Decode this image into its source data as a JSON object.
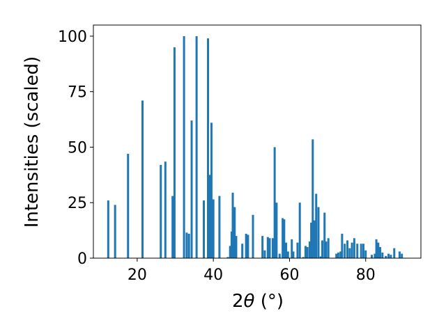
{
  "chart_data": {
    "type": "bar",
    "xlabel_prefix": "2",
    "xlabel_symbol": "θ",
    "xlabel_unit": " (°)",
    "ylabel": "Intensities (scaled)",
    "xlim": [
      8.5,
      94.5
    ],
    "ylim": [
      0,
      105
    ],
    "xticks": [
      20,
      40,
      60,
      80
    ],
    "yticks": [
      0,
      25,
      50,
      75,
      100
    ],
    "bar_width": 0.55,
    "grid": false,
    "color": "#1f77b4",
    "bars": [
      {
        "x": 12.4,
        "y": 26
      },
      {
        "x": 14.2,
        "y": 24
      },
      {
        "x": 17.6,
        "y": 47
      },
      {
        "x": 21.4,
        "y": 71
      },
      {
        "x": 26.2,
        "y": 42
      },
      {
        "x": 27.4,
        "y": 43.5
      },
      {
        "x": 29.3,
        "y": 28
      },
      {
        "x": 29.8,
        "y": 95
      },
      {
        "x": 32.3,
        "y": 100
      },
      {
        "x": 33.0,
        "y": 11.5
      },
      {
        "x": 33.6,
        "y": 11
      },
      {
        "x": 34.3,
        "y": 62
      },
      {
        "x": 35.6,
        "y": 100
      },
      {
        "x": 37.5,
        "y": 26
      },
      {
        "x": 38.6,
        "y": 99
      },
      {
        "x": 39.0,
        "y": 37.5
      },
      {
        "x": 39.5,
        "y": 61
      },
      {
        "x": 40.0,
        "y": 26.5
      },
      {
        "x": 41.6,
        "y": 28
      },
      {
        "x": 43.8,
        "y": 0.5
      },
      {
        "x": 44.4,
        "y": 5.5
      },
      {
        "x": 44.8,
        "y": 12
      },
      {
        "x": 45.1,
        "y": 29.5
      },
      {
        "x": 45.6,
        "y": 23
      },
      {
        "x": 46.0,
        "y": 10
      },
      {
        "x": 47.6,
        "y": 6.5
      },
      {
        "x": 48.6,
        "y": 11
      },
      {
        "x": 49.1,
        "y": 10.5
      },
      {
        "x": 50.4,
        "y": 19.5
      },
      {
        "x": 52.9,
        "y": 10
      },
      {
        "x": 53.5,
        "y": 3.5
      },
      {
        "x": 54.3,
        "y": 9.5
      },
      {
        "x": 54.8,
        "y": 9
      },
      {
        "x": 55.6,
        "y": 9
      },
      {
        "x": 56.1,
        "y": 50
      },
      {
        "x": 56.6,
        "y": 25
      },
      {
        "x": 57.4,
        "y": 2
      },
      {
        "x": 58.2,
        "y": 18
      },
      {
        "x": 58.6,
        "y": 17.5
      },
      {
        "x": 59.1,
        "y": 7
      },
      {
        "x": 59.6,
        "y": 3
      },
      {
        "x": 60.6,
        "y": 8.5
      },
      {
        "x": 61.0,
        "y": 3
      },
      {
        "x": 62.1,
        "y": 7
      },
      {
        "x": 62.7,
        "y": 25
      },
      {
        "x": 63.6,
        "y": 0.5
      },
      {
        "x": 64.2,
        "y": 5.5
      },
      {
        "x": 64.7,
        "y": 5
      },
      {
        "x": 65.3,
        "y": 7.5
      },
      {
        "x": 65.7,
        "y": 16
      },
      {
        "x": 66.1,
        "y": 53.5
      },
      {
        "x": 66.6,
        "y": 17
      },
      {
        "x": 67.0,
        "y": 29
      },
      {
        "x": 67.6,
        "y": 23
      },
      {
        "x": 68.2,
        "y": 0.8
      },
      {
        "x": 68.6,
        "y": 8
      },
      {
        "x": 69.2,
        "y": 20.5
      },
      {
        "x": 69.6,
        "y": 7.5
      },
      {
        "x": 70.2,
        "y": 9
      },
      {
        "x": 72.3,
        "y": 2
      },
      {
        "x": 72.8,
        "y": 2.5
      },
      {
        "x": 73.4,
        "y": 3
      },
      {
        "x": 73.8,
        "y": 11
      },
      {
        "x": 74.5,
        "y": 6.5
      },
      {
        "x": 75.2,
        "y": 8
      },
      {
        "x": 75.8,
        "y": 4.5
      },
      {
        "x": 76.4,
        "y": 7
      },
      {
        "x": 77.0,
        "y": 9
      },
      {
        "x": 77.8,
        "y": 6.5
      },
      {
        "x": 78.8,
        "y": 6.5
      },
      {
        "x": 79.4,
        "y": 6.5
      },
      {
        "x": 80.0,
        "y": 3.5
      },
      {
        "x": 81.6,
        "y": 1.5
      },
      {
        "x": 82.4,
        "y": 2
      },
      {
        "x": 82.8,
        "y": 8.5
      },
      {
        "x": 83.3,
        "y": 7
      },
      {
        "x": 83.8,
        "y": 5
      },
      {
        "x": 84.4,
        "y": 2.5
      },
      {
        "x": 85.3,
        "y": 1
      },
      {
        "x": 86.0,
        "y": 2
      },
      {
        "x": 86.6,
        "y": 1.5
      },
      {
        "x": 87.5,
        "y": 4.5
      },
      {
        "x": 88.9,
        "y": 3
      },
      {
        "x": 89.5,
        "y": 2
      }
    ]
  }
}
